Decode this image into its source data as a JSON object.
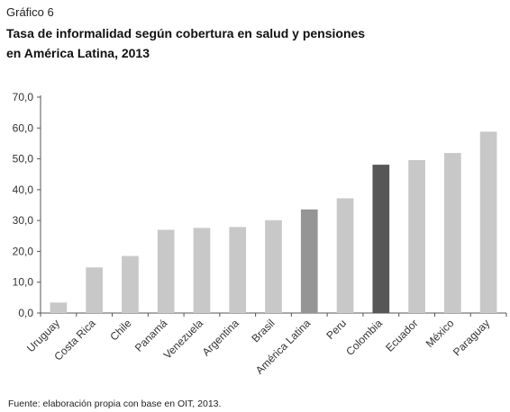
{
  "figure_label": "Gráfico 6",
  "title_lines": [
    "Tasa de informalidad según cobertura en salud y pensiones",
    "en América Latina, 2013"
  ],
  "source": "Fuente: elaboración propia con base en OIT, 2013.",
  "chart_data": {
    "type": "bar",
    "categories": [
      "Uruguay",
      "Costa Rica",
      "Chile",
      "Panamá",
      "Venezuela",
      "Argentina",
      "Brasil",
      "América Latina",
      "Peru",
      "Colombia",
      "Ecuador",
      "México",
      "Paraguay"
    ],
    "values": [
      3.4,
      14.8,
      18.5,
      27.0,
      27.6,
      27.9,
      30.1,
      33.6,
      37.2,
      48.1,
      49.6,
      51.9,
      58.8
    ],
    "bar_colors": [
      "#c8c8c8",
      "#c8c8c8",
      "#c8c8c8",
      "#c8c8c8",
      "#c8c8c8",
      "#c8c8c8",
      "#c8c8c8",
      "#959595",
      "#c8c8c8",
      "#575757",
      "#c8c8c8",
      "#c8c8c8",
      "#c8c8c8"
    ],
    "ylim": [
      0,
      70
    ],
    "yticks": [
      "0,0",
      "10,0",
      "20,0",
      "30,0",
      "40,0",
      "50,0",
      "60,0",
      "70,0"
    ],
    "grid": false,
    "legend": "none"
  }
}
